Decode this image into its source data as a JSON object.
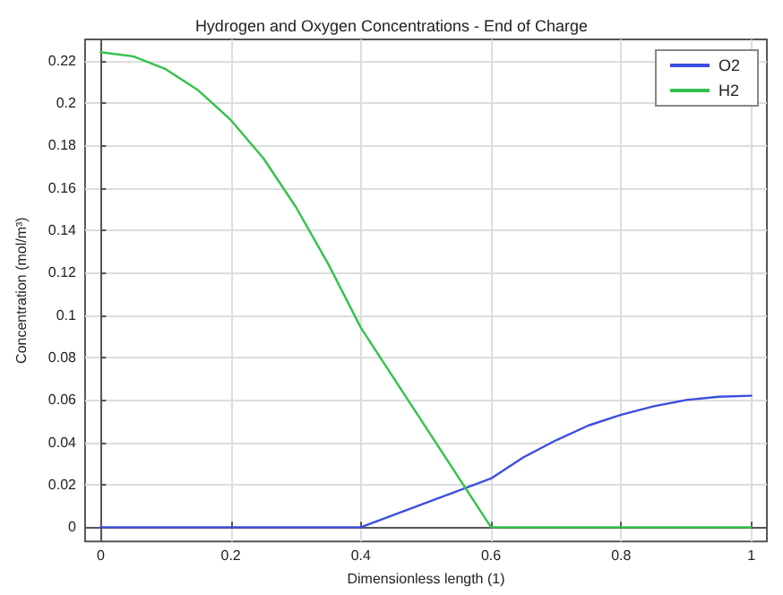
{
  "chart_data": {
    "type": "line",
    "title": "Hydrogen and Oxygen Concentrations - End of Charge",
    "xlabel": "Dimensionless length (1)",
    "ylabel": "Concentration (mol/m³)",
    "x": [
      0,
      0.05,
      0.1,
      0.15,
      0.2,
      0.25,
      0.3,
      0.35,
      0.4,
      0.5,
      0.6,
      0.65,
      0.7,
      0.75,
      0.8,
      0.85,
      0.9,
      0.95,
      1
    ],
    "series": [
      {
        "name": "O2",
        "color": "#3a4fe0",
        "values": [
          0,
          0,
          0,
          0,
          0,
          0,
          0,
          0,
          0,
          0.0115,
          0.023,
          0.033,
          0.041,
          0.048,
          0.053,
          0.057,
          0.06,
          0.0615,
          0.062
        ]
      },
      {
        "name": "H2",
        "color": "#33c24d",
        "values": [
          0.224,
          0.222,
          0.216,
          0.206,
          0.192,
          0.174,
          0.151,
          0.124,
          0.094,
          0.047,
          0,
          0,
          0,
          0,
          0,
          0,
          0,
          0,
          0
        ]
      }
    ],
    "xlim": [
      -0.024,
      1.024
    ],
    "xticks": [
      0,
      0.2,
      0.4,
      0.6,
      0.8,
      1
    ],
    "ylim": [
      -0.0067,
      0.23
    ],
    "yticks": [
      0,
      0.02,
      0.04,
      0.06,
      0.08,
      0.1,
      0.12,
      0.14,
      0.16,
      0.18,
      0.2,
      0.22
    ],
    "grid": true,
    "legend": "top right",
    "marker": "none",
    "line_style": "solid"
  }
}
